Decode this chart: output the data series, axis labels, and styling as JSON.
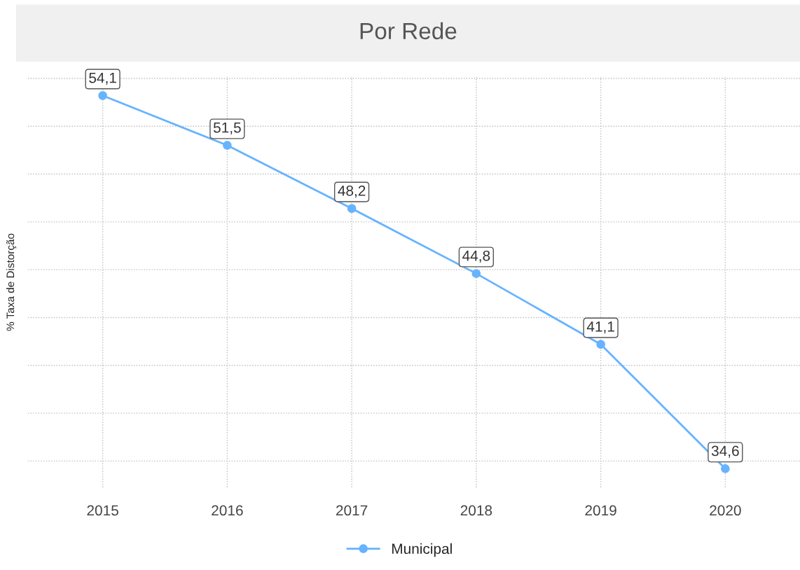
{
  "chart_data": {
    "type": "line",
    "title": "Por Rede",
    "ylabel": "% Taxa de Distorção",
    "categories": [
      "2015",
      "2016",
      "2017",
      "2018",
      "2019",
      "2020"
    ],
    "series": [
      {
        "name": "Municipal",
        "color": "#66b3ff",
        "values": [
          54.1,
          51.5,
          48.2,
          44.8,
          41.1,
          34.6
        ],
        "value_labels": [
          "54,1",
          "51,5",
          "48,2",
          "44,8",
          "41,1",
          "34,6"
        ]
      }
    ],
    "tick_labels": "x",
    "grid": true,
    "legend": "bottom",
    "marker": "circle",
    "line_style": "solid"
  }
}
